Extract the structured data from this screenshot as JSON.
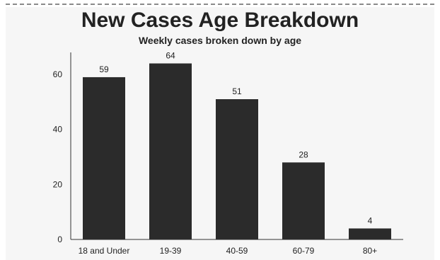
{
  "chart_data": {
    "type": "bar",
    "title": "New Cases Age Breakdown",
    "subtitle": "Weekly cases broken down by age",
    "xlabel": "",
    "ylabel": "",
    "categories": [
      "18 and Under",
      "19-39",
      "40-59",
      "60-79",
      "80+"
    ],
    "values": [
      59,
      64,
      51,
      28,
      4
    ],
    "ylim": [
      0,
      68
    ],
    "yticks": [
      0,
      20,
      40,
      60
    ],
    "grid": false,
    "bar_color": "#2b2b2b"
  }
}
